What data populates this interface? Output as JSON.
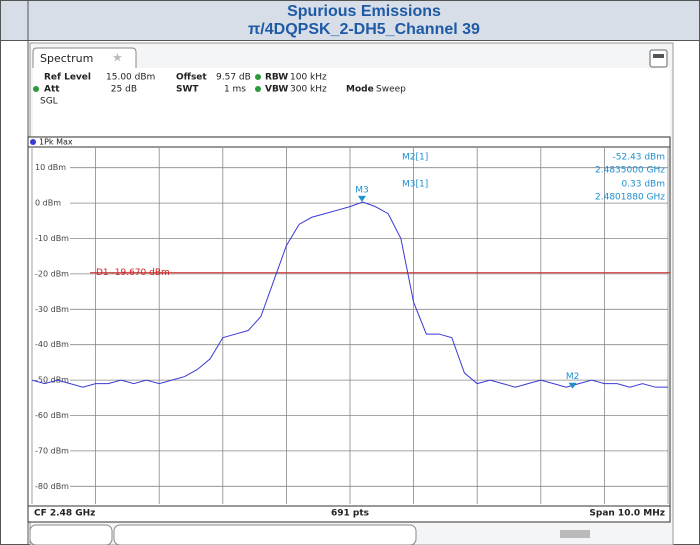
{
  "header": {
    "title": "Spurious Emissions",
    "subtitle": "π/4DQPSK_2-DH5_Channel 39"
  },
  "tab": "Spectrum",
  "settings": {
    "ref_level_label": "Ref Level",
    "ref_level": "15.00 dBm",
    "offset_label": "Offset",
    "offset": "9.57 dB",
    "rbw_label": "RBW",
    "rbw": "100 kHz",
    "att_label": "Att",
    "att": "25 dB",
    "swt_label": "SWT",
    "swt": "1 ms",
    "vbw_label": "VBW",
    "vbw": "300 kHz",
    "mode_label": "Mode",
    "mode": "Sweep",
    "sgl": "SGL"
  },
  "chart_data": {
    "type": "line",
    "trace_label": "1Pk Max",
    "color": "#3a3ad6",
    "xlim": [
      2.475,
      2.485
    ],
    "ylim": [
      -85,
      15
    ],
    "yticks": [
      {
        "value": 10,
        "label": "10 dBm"
      },
      {
        "value": 0,
        "label": "0 dBm"
      },
      {
        "value": -10,
        "label": "-10 dBm"
      },
      {
        "value": -20,
        "label": "-20 dBm"
      },
      {
        "value": -30,
        "label": "-30 dBm"
      },
      {
        "value": -40,
        "label": "-40 dBm"
      },
      {
        "value": -50,
        "label": "-50 dBm"
      },
      {
        "value": -60,
        "label": "-60 dBm"
      },
      {
        "value": -70,
        "label": "-70 dBm"
      },
      {
        "value": -80,
        "label": "-80 dBm"
      }
    ],
    "grid": true,
    "x": [
      2.475,
      2.4752,
      2.4754,
      2.4756,
      2.4758,
      2.476,
      2.4762,
      2.4764,
      2.4766,
      2.4768,
      2.477,
      2.4772,
      2.4774,
      2.4776,
      2.4778,
      2.478,
      2.4782,
      2.4784,
      2.4786,
      2.4788,
      2.479,
      2.4792,
      2.4794,
      2.4796,
      2.4798,
      2.48,
      2.4802,
      2.4804,
      2.4806,
      2.4808,
      2.481,
      2.4812,
      2.4814,
      2.4816,
      2.4818,
      2.482,
      2.4822,
      2.4824,
      2.4826,
      2.4828,
      2.483,
      2.4832,
      2.4834,
      2.4836,
      2.4838,
      2.484,
      2.4842,
      2.4844,
      2.4846,
      2.4848,
      2.485
    ],
    "values": [
      -50,
      -51,
      -50,
      -51,
      -52,
      -51,
      -51,
      -50,
      -51,
      -50,
      -51,
      -50,
      -49,
      -47,
      -44,
      -38,
      -37,
      -36,
      -32,
      -22,
      -12,
      -6,
      -4,
      -3,
      -2,
      -1,
      0.3,
      -1,
      -3,
      -10,
      -28,
      -37,
      -37,
      -38,
      -48,
      -51,
      -50,
      -51,
      -52,
      -51,
      -50,
      -51,
      -52,
      -51,
      -50,
      -51,
      -51,
      -52,
      -51,
      -52,
      -52
    ],
    "display_line": {
      "label": "D1 -19.670 dBm",
      "value": -19.67,
      "color": "#d02020"
    },
    "markers": [
      {
        "name": "M2",
        "table_label": "M2[1]",
        "x": 2.4835,
        "y": -52.43,
        "x_label": "2.4835000 GHz",
        "y_label": "-52.43 dBm"
      },
      {
        "name": "M3",
        "table_label": "M3[1]",
        "x": 2.480188,
        "y": 0.33,
        "x_label": "2.4801880 GHz",
        "y_label": "0.33 dBm"
      }
    ],
    "marker_color": "#1e8fd0",
    "footer": {
      "center_frequency": "CF 2.48 GHz",
      "points": "691 pts",
      "span": "Span 10.0 MHz"
    }
  }
}
